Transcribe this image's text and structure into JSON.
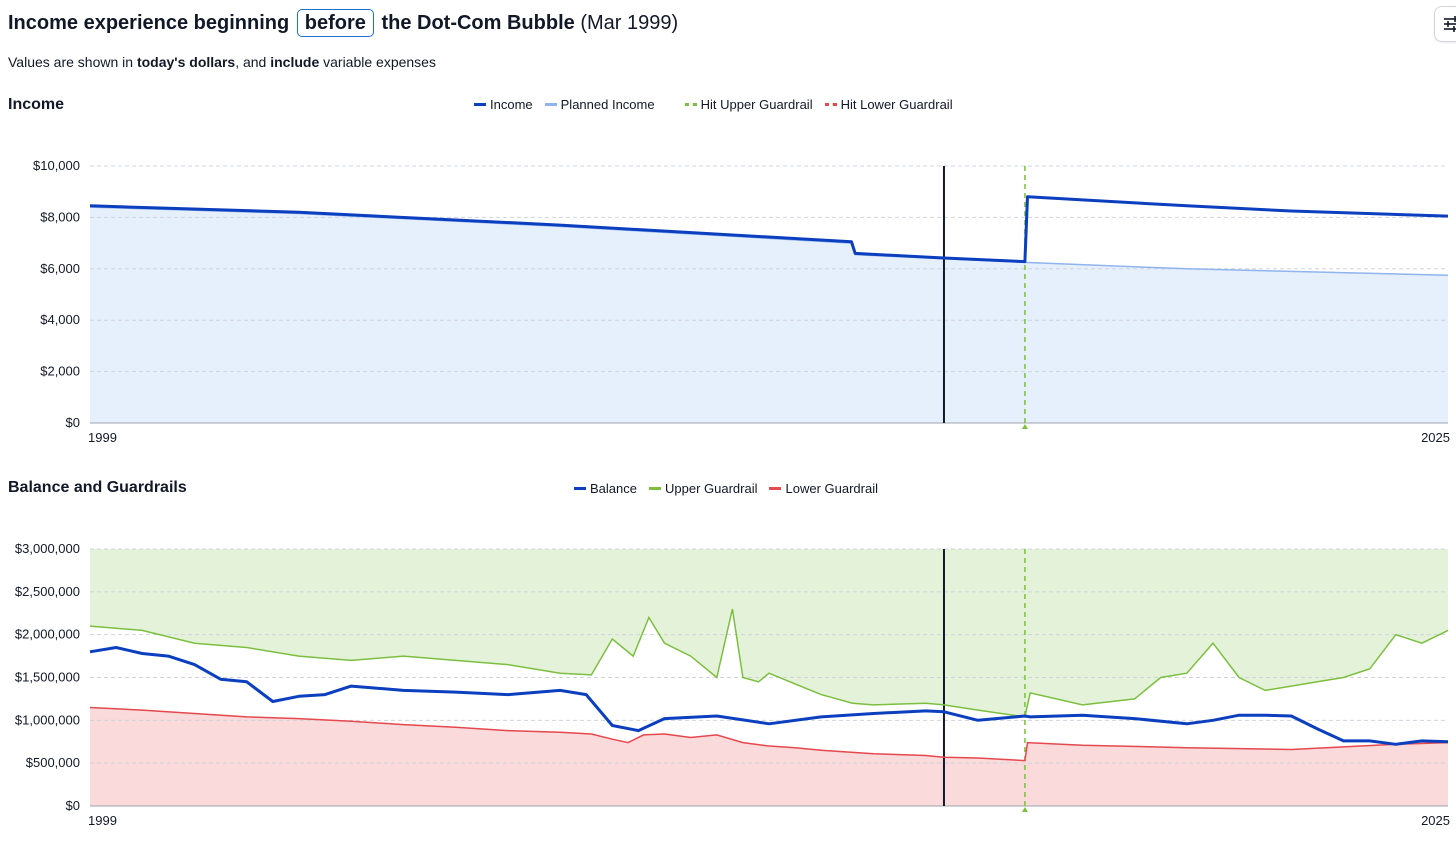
{
  "header": {
    "title_pre": "Income experience beginning",
    "title_select": "before",
    "title_post": "the Dot-Com Bubble",
    "title_paren": "(Mar 1999)",
    "settings_icon": "sliders-icon"
  },
  "subtitle": {
    "t1": "Values are shown in ",
    "b1": "today's dollars",
    "t2": ", and ",
    "b2": "include",
    "t3": " variable expenses"
  },
  "colors": {
    "income": "#0b3fbf",
    "planned_income": "#8fb4ee",
    "income_fill": "#e6effc",
    "upper": "#7cbf3f",
    "upper_fill": "#e4f2d9",
    "lower": "#e5484d",
    "lower_fill": "#fadada",
    "marker": "#0f1b2d"
  },
  "income_chart": {
    "title": "Income",
    "legend": [
      "Income",
      "Planned Income",
      "Hit Upper Guardrail",
      "Hit Lower Guardrail"
    ]
  },
  "balance_chart": {
    "title": "Balance and Guardrails",
    "legend": [
      "Balance",
      "Upper Guardrail",
      "Lower Guardrail"
    ]
  },
  "chart_data": [
    {
      "type": "line",
      "title": "Income",
      "x_tick_labels": [
        "1999",
        "2025"
      ],
      "y_ticks": [
        0,
        2000,
        4000,
        6000,
        8000,
        10000
      ],
      "y_tick_labels": [
        "$0",
        "$2,000",
        "$4,000",
        "$6,000",
        "$8,000",
        "$10,000"
      ],
      "ylim": [
        0,
        10000
      ],
      "xlim": [
        1999,
        2025
      ],
      "grid": true,
      "legend_position": "top-center",
      "vertical_marker_x": 2015.35,
      "guardrail_hit_x": 2016.9,
      "series": [
        {
          "name": "Income",
          "x": [
            1999,
            2003,
            2008,
            2013.58,
            2013.65,
            2015.35,
            2016.9,
            2016.95,
            2020,
            2022,
            2025
          ],
          "y": [
            8450,
            8200,
            7700,
            7050,
            6600,
            6420,
            6280,
            8800,
            8450,
            8250,
            8050
          ]
        },
        {
          "name": "Planned Income",
          "x": [
            1999,
            2003,
            2008,
            2013.58,
            2013.65,
            2016.9,
            2020,
            2025
          ],
          "y": [
            8400,
            8150,
            7650,
            7000,
            6550,
            6250,
            6000,
            5750
          ]
        }
      ]
    },
    {
      "type": "line",
      "title": "Balance and Guardrails",
      "x_tick_labels": [
        "1999",
        "2025"
      ],
      "y_ticks": [
        0,
        500000,
        1000000,
        1500000,
        2000000,
        2500000,
        3000000
      ],
      "y_tick_labels": [
        "$0",
        "$500,000",
        "$1,000,000",
        "$1,500,000",
        "$2,000,000",
        "$2,500,000",
        "$3,000,000"
      ],
      "ylim": [
        0,
        3000000
      ],
      "xlim": [
        1999,
        2025
      ],
      "grid": true,
      "legend_position": "top-center",
      "vertical_marker_x": 2015.35,
      "guardrail_hit_x": 2016.9,
      "series": [
        {
          "name": "Balance",
          "x": [
            1999,
            1999.5,
            2000,
            2000.5,
            2001,
            2001.5,
            2002,
            2002.5,
            2003,
            2003.5,
            2004,
            2005,
            2006,
            2007,
            2008,
            2008.5,
            2009,
            2009.5,
            2010,
            2011,
            2012,
            2013,
            2014,
            2015,
            2015.35,
            2016,
            2016.9,
            2017,
            2018,
            2019,
            2020,
            2020.5,
            2021,
            2021.5,
            2022,
            2022.5,
            2023,
            2023.5,
            2024,
            2024.5,
            2025
          ],
          "y": [
            1800000,
            1850000,
            1780000,
            1750000,
            1650000,
            1480000,
            1450000,
            1220000,
            1280000,
            1300000,
            1400000,
            1350000,
            1330000,
            1300000,
            1350000,
            1300000,
            940000,
            880000,
            1020000,
            1050000,
            960000,
            1040000,
            1080000,
            1110000,
            1100000,
            1000000,
            1050000,
            1040000,
            1060000,
            1020000,
            960000,
            1000000,
            1060000,
            1060000,
            1050000,
            900000,
            760000,
            760000,
            720000,
            760000,
            750000
          ]
        },
        {
          "name": "Upper Guardrail",
          "x": [
            1999,
            2000,
            2001,
            2002,
            2003,
            2004,
            2005,
            2006,
            2007,
            2008,
            2008.6,
            2009,
            2009.4,
            2009.7,
            2010,
            2010.5,
            2011,
            2011.3,
            2011.5,
            2011.8,
            2012,
            2012.6,
            2013,
            2013.6,
            2014,
            2015,
            2015.35,
            2016,
            2016.9,
            2017,
            2018,
            2019,
            2019.5,
            2020,
            2020.5,
            2021,
            2021.5,
            2022,
            2022.5,
            2023,
            2023.5,
            2024,
            2024.5,
            2025
          ],
          "y": [
            2100000,
            2050000,
            1900000,
            1850000,
            1750000,
            1700000,
            1750000,
            1700000,
            1650000,
            1550000,
            1530000,
            1950000,
            1750000,
            2200000,
            1900000,
            1750000,
            1500000,
            2300000,
            1500000,
            1450000,
            1550000,
            1400000,
            1300000,
            1200000,
            1180000,
            1200000,
            1180000,
            1120000,
            1040000,
            1320000,
            1180000,
            1250000,
            1500000,
            1550000,
            1900000,
            1500000,
            1350000,
            1400000,
            1450000,
            1500000,
            1600000,
            2000000,
            1900000,
            2050000
          ]
        },
        {
          "name": "Lower Guardrail",
          "x": [
            1999,
            2000,
            2001,
            2002,
            2003,
            2004,
            2005,
            2006,
            2007,
            2008,
            2008.6,
            2009,
            2009.3,
            2009.6,
            2010,
            2010.5,
            2011,
            2011.5,
            2012,
            2012.5,
            2013,
            2014,
            2015,
            2015.35,
            2016,
            2016.9,
            2016.95,
            2018,
            2020,
            2022,
            2023,
            2024,
            2025
          ],
          "y": [
            1150000,
            1120000,
            1080000,
            1040000,
            1020000,
            990000,
            950000,
            920000,
            880000,
            860000,
            840000,
            780000,
            740000,
            830000,
            840000,
            800000,
            830000,
            740000,
            700000,
            680000,
            650000,
            610000,
            590000,
            570000,
            560000,
            530000,
            740000,
            710000,
            680000,
            660000,
            690000,
            720000,
            740000
          ]
        }
      ]
    }
  ]
}
